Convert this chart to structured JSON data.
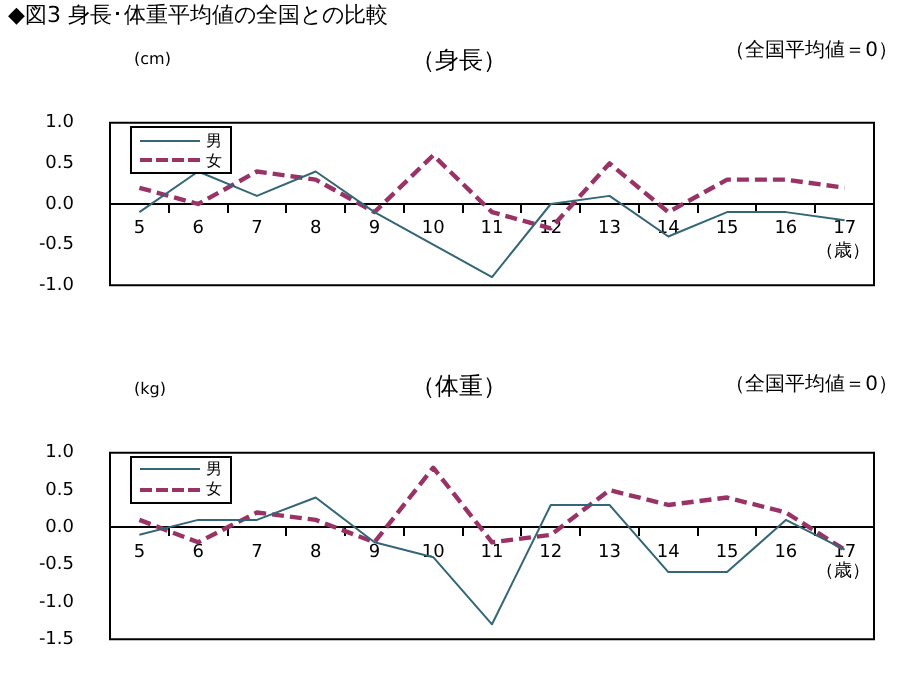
{
  "chart_data": [
    {
      "type": "line",
      "title": "◆図3 身長･体重平均値の全国との比較",
      "subtitle": "（身長）",
      "ylabel": "(cm)",
      "xlabel": "（歳）",
      "annotations": [
        "（全国平均値＝0）"
      ],
      "categories": [
        "5",
        "6",
        "7",
        "8",
        "9",
        "10",
        "11",
        "12",
        "13",
        "14",
        "15",
        "16",
        "17"
      ],
      "series": [
        {
          "name": "男",
          "color": "#336677",
          "line_style": "solid",
          "values": [
            -0.1,
            0.4,
            0.1,
            0.4,
            -0.1,
            -0.5,
            -0.9,
            0.0,
            0.1,
            -0.4,
            -0.1,
            -0.1,
            -0.2
          ]
        },
        {
          "name": "女",
          "color": "#993366",
          "line_style": "dashed",
          "values": [
            0.2,
            0.0,
            0.4,
            0.3,
            -0.1,
            0.6,
            -0.1,
            -0.3,
            0.5,
            -0.1,
            0.3,
            0.3,
            0.2
          ]
        }
      ],
      "ylim": [
        -1,
        1
      ],
      "yticks": [
        {
          "value": -1,
          "label": "-1.0"
        },
        {
          "value": -0.5,
          "label": "-0.5"
        },
        {
          "value": 0,
          "label": "0.0"
        },
        {
          "value": 0.5,
          "label": "0.5"
        },
        {
          "value": 1,
          "label": "1.0"
        }
      ],
      "grid": false,
      "legend": "top left",
      "marker": "none"
    },
    {
      "type": "line",
      "title": "（体重）",
      "ylabel": "(kg)",
      "xlabel": "（歳）",
      "annotations": [
        "（全国平均値＝0）"
      ],
      "categories": [
        "5",
        "6",
        "7",
        "8",
        "9",
        "10",
        "11",
        "12",
        "13",
        "14",
        "15",
        "16",
        "17"
      ],
      "series": [
        {
          "name": "男",
          "color": "#336677",
          "line_style": "solid",
          "values": [
            -0.1,
            0.1,
            0.1,
            0.4,
            -0.2,
            -0.4,
            -1.3,
            0.3,
            0.3,
            -0.6,
            -0.6,
            0.1,
            -0.3
          ]
        },
        {
          "name": "女",
          "color": "#993366",
          "line_style": "dashed",
          "values": [
            0.1,
            -0.2,
            0.2,
            0.1,
            -0.2,
            0.8,
            -0.2,
            -0.1,
            0.5,
            0.3,
            0.4,
            0.2,
            -0.3
          ]
        }
      ],
      "ylim": [
        -1.5,
        1
      ],
      "yticks": [
        {
          "value": -1.5,
          "label": "-1.5"
        },
        {
          "value": -1,
          "label": "-1.0"
        },
        {
          "value": -0.5,
          "label": "-0.5"
        },
        {
          "value": 0,
          "label": "0.0"
        },
        {
          "value": 0.5,
          "label": "0.5"
        },
        {
          "value": 1,
          "label": "1.0"
        }
      ],
      "grid": false,
      "legend": "top left",
      "marker": "none"
    }
  ]
}
